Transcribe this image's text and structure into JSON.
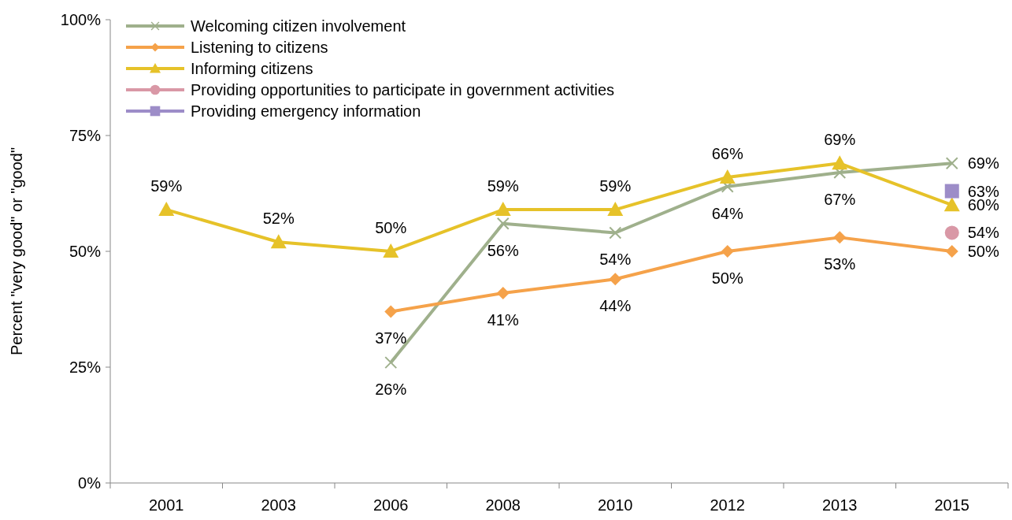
{
  "chart_data": {
    "type": "line",
    "ylabel": "Percent \"very good\" or \"good\"",
    "categories": [
      "2001",
      "2003",
      "2006",
      "2008",
      "2010",
      "2012",
      "2013",
      "2015"
    ],
    "ylim": [
      0,
      100
    ],
    "yticks": [
      {
        "value": 0,
        "label": "0%"
      },
      {
        "value": 25,
        "label": "25%"
      },
      {
        "value": 50,
        "label": "50%"
      },
      {
        "value": 75,
        "label": "75%"
      },
      {
        "value": 100,
        "label": "100%"
      }
    ],
    "grid": false,
    "legend": "top left",
    "line_style": "solid",
    "series": [
      {
        "name": "Welcoming citizen involvement",
        "color": "#9fb08c",
        "marker": "cross",
        "values": [
          null,
          null,
          26,
          56,
          54,
          64,
          67,
          69
        ],
        "value_labels": [
          null,
          null,
          "26%",
          "56%",
          "54%",
          "64%",
          "67%",
          "69%"
        ]
      },
      {
        "name": "Listening to citizens",
        "color": "#f5a24a",
        "marker": "diamond",
        "values": [
          null,
          null,
          37,
          41,
          44,
          50,
          53,
          50
        ],
        "value_labels": [
          null,
          null,
          "37%",
          "41%",
          "44%",
          "50%",
          "53%",
          "50%"
        ]
      },
      {
        "name": "Informing citizens",
        "color": "#e6c229",
        "marker": "triangle",
        "values": [
          59,
          52,
          50,
          59,
          59,
          66,
          69,
          60
        ],
        "value_labels": [
          "59%",
          "52%",
          "50%",
          "59%",
          "59%",
          "66%",
          "69%",
          "60%"
        ]
      },
      {
        "name": "Providing opportunities to participate in government activities",
        "color": "#d998a6",
        "marker": "circle",
        "values": [
          null,
          null,
          null,
          null,
          null,
          null,
          null,
          54
        ],
        "value_labels": [
          null,
          null,
          null,
          null,
          null,
          null,
          null,
          "54%"
        ]
      },
      {
        "name": "Providing emergency information",
        "color": "#9d8dc8",
        "marker": "square",
        "values": [
          null,
          null,
          null,
          null,
          null,
          null,
          null,
          63
        ],
        "value_labels": [
          null,
          null,
          null,
          null,
          null,
          null,
          null,
          "63%"
        ]
      }
    ]
  }
}
